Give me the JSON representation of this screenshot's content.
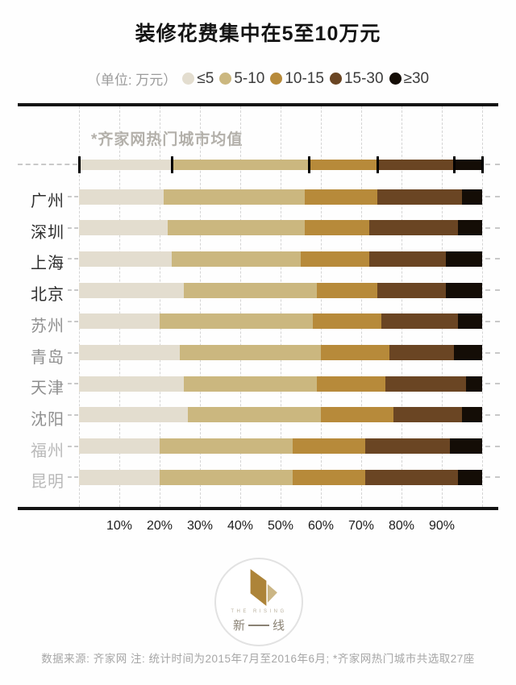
{
  "title": "装修花费集中在5至10万元",
  "legend": {
    "unit_label": "（单位: 万元）",
    "items": [
      {
        "label": "≤5",
        "color": "#e3ddcf"
      },
      {
        "label": "5-10",
        "color": "#cbb77f"
      },
      {
        "label": "10-15",
        "color": "#b78a3a"
      },
      {
        "label": "15-30",
        "color": "#6a4523"
      },
      {
        "label": "≥30",
        "color": "#140d06"
      }
    ]
  },
  "chart_data": {
    "type": "bar",
    "orientation": "horizontal",
    "stacked": true,
    "unit": "万元",
    "title": "装修花费集中在5至10万元",
    "series_labels": [
      "≤5",
      "5-10",
      "10-15",
      "15-30",
      "≥30"
    ],
    "series_colors": [
      "#e3ddcf",
      "#cbb77f",
      "#b78a3a",
      "#6a4523",
      "#140d06"
    ],
    "average_row": {
      "label": "*齐家网热门城市均值",
      "values": [
        23,
        34,
        17,
        19,
        7
      ]
    },
    "categories": [
      "广州",
      "深圳",
      "上海",
      "北京",
      "苏州",
      "青岛",
      "天津",
      "沈阳",
      "福州",
      "昆明"
    ],
    "rows": [
      {
        "city": "广州",
        "tier": "dark",
        "values": [
          21,
          35,
          18,
          21,
          5
        ]
      },
      {
        "city": "深圳",
        "tier": "dark",
        "values": [
          22,
          34,
          16,
          22,
          6
        ]
      },
      {
        "city": "上海",
        "tier": "dark",
        "values": [
          23,
          32,
          17,
          19,
          9
        ]
      },
      {
        "city": "北京",
        "tier": "dark",
        "values": [
          26,
          33,
          15,
          17,
          9
        ]
      },
      {
        "city": "苏州",
        "tier": "mid",
        "values": [
          20,
          38,
          17,
          19,
          6
        ]
      },
      {
        "city": "青岛",
        "tier": "mid",
        "values": [
          25,
          35,
          17,
          16,
          7
        ]
      },
      {
        "city": "天津",
        "tier": "mid",
        "values": [
          26,
          33,
          17,
          20,
          4
        ]
      },
      {
        "city": "沈阳",
        "tier": "mid",
        "values": [
          27,
          33,
          18,
          17,
          5
        ]
      },
      {
        "city": "福州",
        "tier": "light",
        "values": [
          20,
          33,
          18,
          21,
          8
        ]
      },
      {
        "city": "昆明",
        "tier": "light",
        "values": [
          20,
          33,
          18,
          23,
          6
        ]
      }
    ],
    "tier_colors": {
      "dark": "#2f2f2f",
      "mid": "#8f8f8f",
      "light": "#b9b9b9"
    },
    "x_ticks": [
      "10%",
      "20%",
      "30%",
      "40%",
      "50%",
      "60%",
      "70%",
      "80%",
      "90%"
    ],
    "xlim": [
      0,
      100
    ],
    "grid": "vertical-dashed",
    "legend_position": "top"
  },
  "footer": {
    "logo_en": "THE RISING",
    "logo_name": "新一线",
    "source_note": "数据来源: 齐家网  注: 统计时间为2015年7月至2016年6月; *齐家网热门城市共选取27座"
  }
}
